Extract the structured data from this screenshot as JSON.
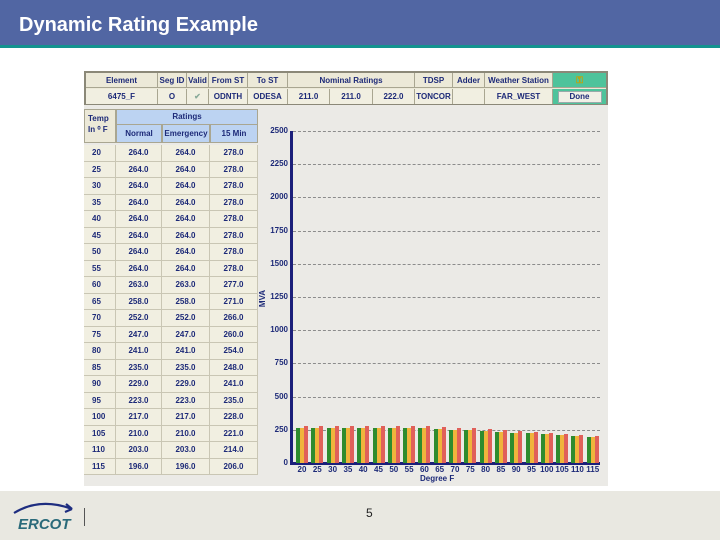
{
  "slide": {
    "title": "Dynamic Rating Example",
    "page_number": "5",
    "logo_text": "ERCOT"
  },
  "top_table": {
    "headers": [
      "Element",
      "Seg ID",
      "Valid",
      "From ST",
      "To ST",
      "Nominal Ratings",
      "TDSP",
      "Adder",
      "Weather Station"
    ],
    "row": {
      "element": "6475_F",
      "seg_id": "O",
      "valid": "✔",
      "from_st": "ODNTH",
      "to_st": "ODESA",
      "nominal_1": "211.0",
      "nominal_2": "211.0",
      "nominal_3": "222.0",
      "tdsp": "TONCOR",
      "adder": "",
      "weather_station": "FAR_WEST"
    },
    "key_icon": "key-icon",
    "done_label": "Done"
  },
  "ratings_table": {
    "temp_header_line1": "Temp",
    "temp_header_line2": "In ⁰ F",
    "ratings_header": "Ratings",
    "sub_headers": [
      "Normal",
      "Emergency",
      "15 Min"
    ],
    "rows": [
      [
        "20",
        "264.0",
        "264.0",
        "278.0"
      ],
      [
        "25",
        "264.0",
        "264.0",
        "278.0"
      ],
      [
        "30",
        "264.0",
        "264.0",
        "278.0"
      ],
      [
        "35",
        "264.0",
        "264.0",
        "278.0"
      ],
      [
        "40",
        "264.0",
        "264.0",
        "278.0"
      ],
      [
        "45",
        "264.0",
        "264.0",
        "278.0"
      ],
      [
        "50",
        "264.0",
        "264.0",
        "278.0"
      ],
      [
        "55",
        "264.0",
        "264.0",
        "278.0"
      ],
      [
        "60",
        "263.0",
        "263.0",
        "277.0"
      ],
      [
        "65",
        "258.0",
        "258.0",
        "271.0"
      ],
      [
        "70",
        "252.0",
        "252.0",
        "266.0"
      ],
      [
        "75",
        "247.0",
        "247.0",
        "260.0"
      ],
      [
        "80",
        "241.0",
        "241.0",
        "254.0"
      ],
      [
        "85",
        "235.0",
        "235.0",
        "248.0"
      ],
      [
        "90",
        "229.0",
        "229.0",
        "241.0"
      ],
      [
        "95",
        "223.0",
        "223.0",
        "235.0"
      ],
      [
        "100",
        "217.0",
        "217.0",
        "228.0"
      ],
      [
        "105",
        "210.0",
        "210.0",
        "221.0"
      ],
      [
        "110",
        "203.0",
        "203.0",
        "214.0"
      ],
      [
        "115",
        "196.0",
        "196.0",
        "206.0"
      ]
    ]
  },
  "chart_data": {
    "type": "bar",
    "title": "",
    "xlabel": "Degree F",
    "ylabel": "MVA",
    "ylim": [
      0,
      2500
    ],
    "yticks": [
      0,
      250,
      500,
      750,
      1000,
      1250,
      1500,
      1750,
      2000,
      2250,
      2500
    ],
    "grid": true,
    "categories": [
      "20",
      "25",
      "30",
      "35",
      "40",
      "45",
      "50",
      "55",
      "60",
      "65",
      "70",
      "75",
      "80",
      "85",
      "90",
      "95",
      "100",
      "105",
      "110",
      "115"
    ],
    "series": [
      {
        "name": "Normal",
        "color": "#2e8b2e",
        "values": [
          264,
          264,
          264,
          264,
          264,
          264,
          264,
          264,
          263,
          258,
          252,
          247,
          241,
          235,
          229,
          223,
          217,
          210,
          203,
          196
        ]
      },
      {
        "name": "Emergency",
        "color": "#f0b43c",
        "values": [
          264,
          264,
          264,
          264,
          264,
          264,
          264,
          264,
          263,
          258,
          252,
          247,
          241,
          235,
          229,
          223,
          217,
          210,
          203,
          196
        ]
      },
      {
        "name": "15 Min",
        "color": "#e0605a",
        "values": [
          278,
          278,
          278,
          278,
          278,
          278,
          278,
          278,
          277,
          271,
          266,
          260,
          254,
          248,
          241,
          235,
          228,
          221,
          214,
          206
        ]
      }
    ]
  }
}
